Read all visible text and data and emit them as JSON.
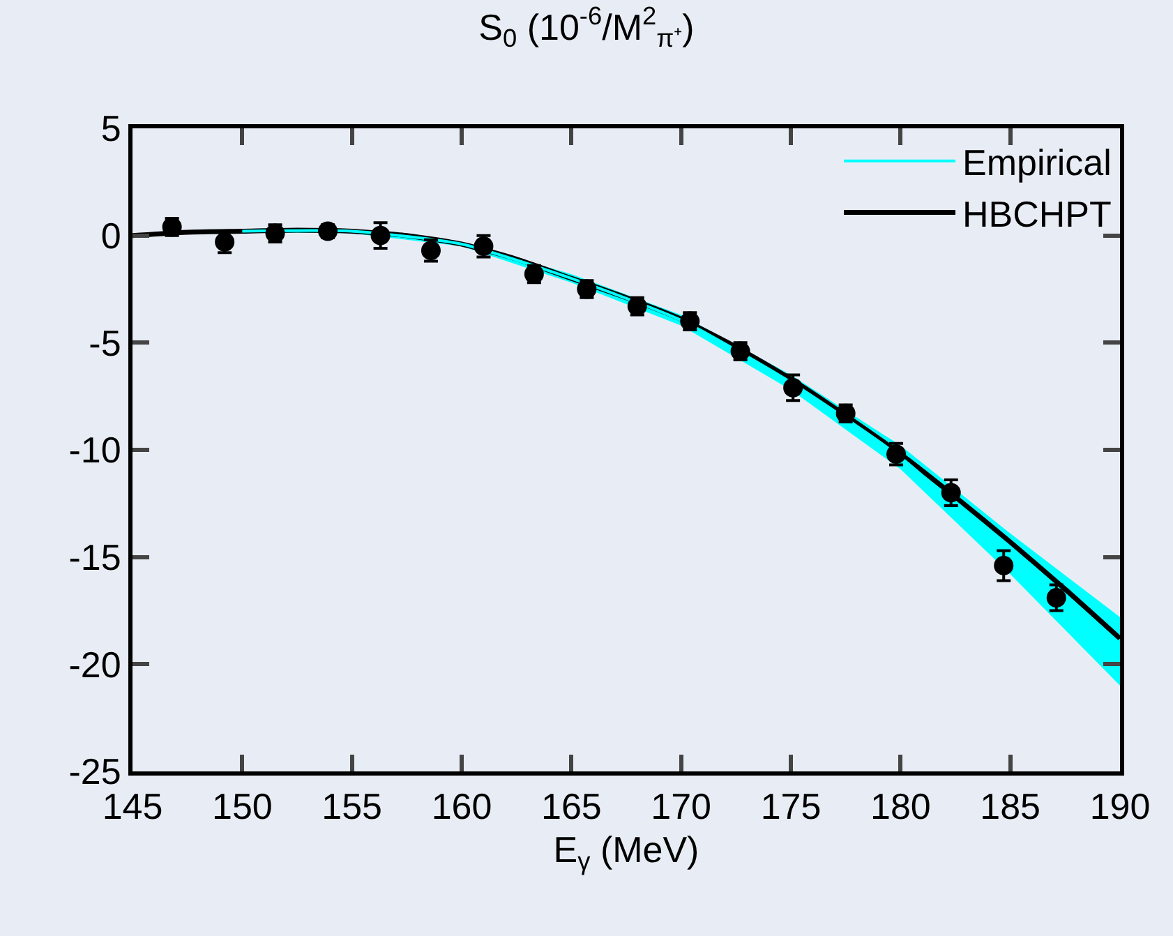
{
  "chart_data": {
    "type": "scatter",
    "title": "S$_{0}$ (10$^{-6}$/M$^{2}$$_{π⁺}$)",
    "xlabel": "E$_{γ}$ (MeV)",
    "xlim": [
      145,
      190
    ],
    "xticks": [
      145,
      150,
      155,
      160,
      165,
      170,
      175,
      180,
      185,
      190
    ],
    "ylim": [
      -25,
      5
    ],
    "yticks": [
      -25,
      -20,
      -15,
      -10,
      -5,
      0,
      5
    ],
    "grid": false,
    "legend": "top right",
    "series": [
      {
        "name": "Empirical",
        "type": "line",
        "color": "#00ffff",
        "x": [
          150,
          155,
          160,
          165,
          170,
          175,
          180,
          185,
          190
        ],
        "values": [
          0.2,
          0.2,
          -0.4,
          -2.0,
          -3.95,
          -6.85,
          -10.35,
          -14.85,
          -19.4
        ],
        "lower": [
          0.15,
          0.1,
          -0.5,
          -2.2,
          -4.2,
          -7.2,
          -10.9,
          -15.8,
          -21.0
        ],
        "upper": [
          0.25,
          0.3,
          -0.3,
          -1.8,
          -3.7,
          -6.5,
          -9.8,
          -13.9,
          -17.8
        ]
      },
      {
        "name": "HBCHPT",
        "type": "line",
        "color": "#000000",
        "marker": "none",
        "x": [
          145,
          147.5,
          150,
          152.5,
          155,
          157.5,
          160,
          162.5,
          165,
          167.5,
          170,
          172.5,
          175,
          177.5,
          180,
          182.5,
          185,
          187.5,
          190
        ],
        "values": [
          0.0,
          0.15,
          0.2,
          0.25,
          0.2,
          0.0,
          -0.4,
          -1.1,
          -2.0,
          -2.9,
          -3.9,
          -5.2,
          -6.7,
          -8.4,
          -10.2,
          -12.2,
          -14.3,
          -16.5,
          -18.8
        ]
      },
      {
        "color": "#000000",
        "x": [
          146.8,
          149.2,
          151.5,
          153.9,
          156.3,
          158.6,
          161.0,
          163.3,
          165.7,
          168.0,
          170.4,
          172.7,
          175.1,
          177.5,
          179.8,
          182.3,
          184.7,
          187.1
        ],
        "values": [
          0.4,
          -0.3,
          0.1,
          0.2,
          0.0,
          -0.7,
          -0.5,
          -1.8,
          -2.5,
          -3.3,
          -4.0,
          -5.4,
          -7.1,
          -8.3,
          -10.2,
          -12.0,
          -15.4,
          -16.9
        ],
        "errors": [
          0.4,
          0.5,
          0.4,
          0.3,
          0.6,
          0.5,
          0.5,
          0.4,
          0.4,
          0.4,
          0.4,
          0.4,
          0.6,
          0.4,
          0.5,
          0.6,
          0.7,
          0.6
        ]
      }
    ]
  }
}
